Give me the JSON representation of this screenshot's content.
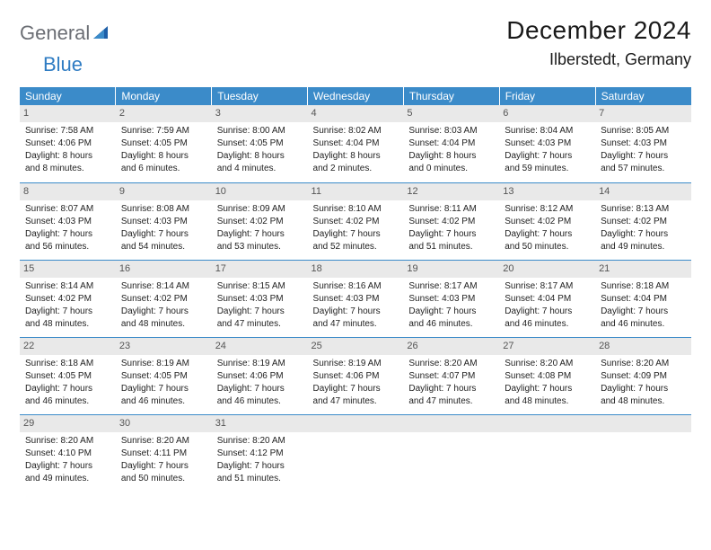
{
  "logo": {
    "a": "General",
    "b": "Blue"
  },
  "title": "December 2024",
  "location": "Ilberstedt, Germany",
  "colors": {
    "header_bg": "#3b8bc9",
    "header_text": "#ffffff",
    "daynum_bg": "#e9e9e9",
    "logo_gray": "#6b6e74",
    "logo_blue": "#2f7cc3",
    "line": "#3b8bc9"
  },
  "week_headers": [
    "Sunday",
    "Monday",
    "Tuesday",
    "Wednesday",
    "Thursday",
    "Friday",
    "Saturday"
  ],
  "weeks": [
    [
      {
        "n": "1",
        "sr": "Sunrise: 7:58 AM",
        "ss": "Sunset: 4:06 PM",
        "d1": "Daylight: 8 hours",
        "d2": "and 8 minutes."
      },
      {
        "n": "2",
        "sr": "Sunrise: 7:59 AM",
        "ss": "Sunset: 4:05 PM",
        "d1": "Daylight: 8 hours",
        "d2": "and 6 minutes."
      },
      {
        "n": "3",
        "sr": "Sunrise: 8:00 AM",
        "ss": "Sunset: 4:05 PM",
        "d1": "Daylight: 8 hours",
        "d2": "and 4 minutes."
      },
      {
        "n": "4",
        "sr": "Sunrise: 8:02 AM",
        "ss": "Sunset: 4:04 PM",
        "d1": "Daylight: 8 hours",
        "d2": "and 2 minutes."
      },
      {
        "n": "5",
        "sr": "Sunrise: 8:03 AM",
        "ss": "Sunset: 4:04 PM",
        "d1": "Daylight: 8 hours",
        "d2": "and 0 minutes."
      },
      {
        "n": "6",
        "sr": "Sunrise: 8:04 AM",
        "ss": "Sunset: 4:03 PM",
        "d1": "Daylight: 7 hours",
        "d2": "and 59 minutes."
      },
      {
        "n": "7",
        "sr": "Sunrise: 8:05 AM",
        "ss": "Sunset: 4:03 PM",
        "d1": "Daylight: 7 hours",
        "d2": "and 57 minutes."
      }
    ],
    [
      {
        "n": "8",
        "sr": "Sunrise: 8:07 AM",
        "ss": "Sunset: 4:03 PM",
        "d1": "Daylight: 7 hours",
        "d2": "and 56 minutes."
      },
      {
        "n": "9",
        "sr": "Sunrise: 8:08 AM",
        "ss": "Sunset: 4:03 PM",
        "d1": "Daylight: 7 hours",
        "d2": "and 54 minutes."
      },
      {
        "n": "10",
        "sr": "Sunrise: 8:09 AM",
        "ss": "Sunset: 4:02 PM",
        "d1": "Daylight: 7 hours",
        "d2": "and 53 minutes."
      },
      {
        "n": "11",
        "sr": "Sunrise: 8:10 AM",
        "ss": "Sunset: 4:02 PM",
        "d1": "Daylight: 7 hours",
        "d2": "and 52 minutes."
      },
      {
        "n": "12",
        "sr": "Sunrise: 8:11 AM",
        "ss": "Sunset: 4:02 PM",
        "d1": "Daylight: 7 hours",
        "d2": "and 51 minutes."
      },
      {
        "n": "13",
        "sr": "Sunrise: 8:12 AM",
        "ss": "Sunset: 4:02 PM",
        "d1": "Daylight: 7 hours",
        "d2": "and 50 minutes."
      },
      {
        "n": "14",
        "sr": "Sunrise: 8:13 AM",
        "ss": "Sunset: 4:02 PM",
        "d1": "Daylight: 7 hours",
        "d2": "and 49 minutes."
      }
    ],
    [
      {
        "n": "15",
        "sr": "Sunrise: 8:14 AM",
        "ss": "Sunset: 4:02 PM",
        "d1": "Daylight: 7 hours",
        "d2": "and 48 minutes."
      },
      {
        "n": "16",
        "sr": "Sunrise: 8:14 AM",
        "ss": "Sunset: 4:02 PM",
        "d1": "Daylight: 7 hours",
        "d2": "and 48 minutes."
      },
      {
        "n": "17",
        "sr": "Sunrise: 8:15 AM",
        "ss": "Sunset: 4:03 PM",
        "d1": "Daylight: 7 hours",
        "d2": "and 47 minutes."
      },
      {
        "n": "18",
        "sr": "Sunrise: 8:16 AM",
        "ss": "Sunset: 4:03 PM",
        "d1": "Daylight: 7 hours",
        "d2": "and 47 minutes."
      },
      {
        "n": "19",
        "sr": "Sunrise: 8:17 AM",
        "ss": "Sunset: 4:03 PM",
        "d1": "Daylight: 7 hours",
        "d2": "and 46 minutes."
      },
      {
        "n": "20",
        "sr": "Sunrise: 8:17 AM",
        "ss": "Sunset: 4:04 PM",
        "d1": "Daylight: 7 hours",
        "d2": "and 46 minutes."
      },
      {
        "n": "21",
        "sr": "Sunrise: 8:18 AM",
        "ss": "Sunset: 4:04 PM",
        "d1": "Daylight: 7 hours",
        "d2": "and 46 minutes."
      }
    ],
    [
      {
        "n": "22",
        "sr": "Sunrise: 8:18 AM",
        "ss": "Sunset: 4:05 PM",
        "d1": "Daylight: 7 hours",
        "d2": "and 46 minutes."
      },
      {
        "n": "23",
        "sr": "Sunrise: 8:19 AM",
        "ss": "Sunset: 4:05 PM",
        "d1": "Daylight: 7 hours",
        "d2": "and 46 minutes."
      },
      {
        "n": "24",
        "sr": "Sunrise: 8:19 AM",
        "ss": "Sunset: 4:06 PM",
        "d1": "Daylight: 7 hours",
        "d2": "and 46 minutes."
      },
      {
        "n": "25",
        "sr": "Sunrise: 8:19 AM",
        "ss": "Sunset: 4:06 PM",
        "d1": "Daylight: 7 hours",
        "d2": "and 47 minutes."
      },
      {
        "n": "26",
        "sr": "Sunrise: 8:20 AM",
        "ss": "Sunset: 4:07 PM",
        "d1": "Daylight: 7 hours",
        "d2": "and 47 minutes."
      },
      {
        "n": "27",
        "sr": "Sunrise: 8:20 AM",
        "ss": "Sunset: 4:08 PM",
        "d1": "Daylight: 7 hours",
        "d2": "and 48 minutes."
      },
      {
        "n": "28",
        "sr": "Sunrise: 8:20 AM",
        "ss": "Sunset: 4:09 PM",
        "d1": "Daylight: 7 hours",
        "d2": "and 48 minutes."
      }
    ],
    [
      {
        "n": "29",
        "sr": "Sunrise: 8:20 AM",
        "ss": "Sunset: 4:10 PM",
        "d1": "Daylight: 7 hours",
        "d2": "and 49 minutes."
      },
      {
        "n": "30",
        "sr": "Sunrise: 8:20 AM",
        "ss": "Sunset: 4:11 PM",
        "d1": "Daylight: 7 hours",
        "d2": "and 50 minutes."
      },
      {
        "n": "31",
        "sr": "Sunrise: 8:20 AM",
        "ss": "Sunset: 4:12 PM",
        "d1": "Daylight: 7 hours",
        "d2": "and 51 minutes."
      },
      {
        "n": "",
        "sr": "",
        "ss": "",
        "d1": "",
        "d2": ""
      },
      {
        "n": "",
        "sr": "",
        "ss": "",
        "d1": "",
        "d2": ""
      },
      {
        "n": "",
        "sr": "",
        "ss": "",
        "d1": "",
        "d2": ""
      },
      {
        "n": "",
        "sr": "",
        "ss": "",
        "d1": "",
        "d2": ""
      }
    ]
  ]
}
